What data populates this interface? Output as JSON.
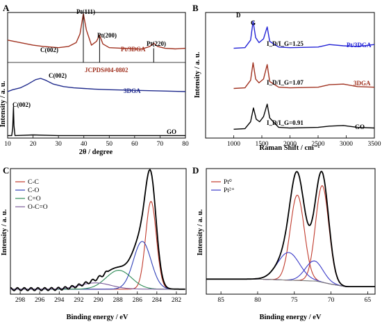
{
  "chart_data": [
    {
      "panel": "A",
      "type": "line",
      "xlabel": "2θ / degree",
      "ylabel": "Intensity / a. u.",
      "xlim": [
        10,
        80
      ],
      "xticks": [
        "10",
        "20",
        "30",
        "40",
        "50",
        "60",
        "70",
        "80"
      ],
      "series": [
        {
          "name": "Pt/3DGA",
          "color": "#a0311f",
          "points": [
            [
              10,
              0.78
            ],
            [
              15,
              0.76
            ],
            [
              20,
              0.74
            ],
            [
              24,
              0.73
            ],
            [
              30,
              0.72
            ],
            [
              34,
              0.73
            ],
            [
              37,
              0.76
            ],
            [
              38.5,
              0.83
            ],
            [
              39.8,
              0.99
            ],
            [
              41,
              0.86
            ],
            [
              43,
              0.74
            ],
            [
              45,
              0.77
            ],
            [
              46.2,
              0.82
            ],
            [
              47.5,
              0.75
            ],
            [
              50,
              0.72
            ],
            [
              55,
              0.715
            ],
            [
              60,
              0.71
            ],
            [
              63,
              0.71
            ],
            [
              66,
              0.73
            ],
            [
              67.5,
              0.755
            ],
            [
              69,
              0.73
            ],
            [
              72,
              0.715
            ],
            [
              76,
              0.71
            ],
            [
              80,
              0.715
            ]
          ]
        },
        {
          "name": "3DGA",
          "color": "#1f2a8c",
          "points": [
            [
              10,
              0.37
            ],
            [
              12,
              0.385
            ],
            [
              15,
              0.4
            ],
            [
              18,
              0.43
            ],
            [
              21,
              0.465
            ],
            [
              23,
              0.475
            ],
            [
              25,
              0.46
            ],
            [
              28,
              0.43
            ],
            [
              32,
              0.41
            ],
            [
              36,
              0.4
            ],
            [
              40,
              0.395
            ],
            [
              44,
              0.39
            ],
            [
              50,
              0.385
            ],
            [
              60,
              0.38
            ],
            [
              70,
              0.375
            ],
            [
              80,
              0.37
            ]
          ]
        },
        {
          "name": "GO",
          "color": "#000000",
          "points": [
            [
              10,
              0.02
            ],
            [
              11.6,
              0.02
            ],
            [
              12.0,
              0.08
            ],
            [
              12.3,
              0.25
            ],
            [
              12.5,
              0.1
            ],
            [
              12.9,
              0.02
            ],
            [
              20,
              0.025
            ],
            [
              30,
              0.02
            ],
            [
              40,
              0.02
            ],
            [
              50,
              0.02
            ],
            [
              60,
              0.02
            ],
            [
              70,
              0.02
            ],
            [
              80,
              0.02
            ]
          ]
        }
      ],
      "reference": {
        "name": "JCPDS#04-0802",
        "peaks": [
          [
            39.8,
            1.0
          ],
          [
            46.2,
            0.55
          ],
          [
            67.5,
            0.3
          ]
        ]
      },
      "annotations": {
        "pt111": "Pt(111)",
        "pt200": "Pt(200)",
        "pt220": "Pt(220)",
        "c002_a": "C(002)",
        "c002_b": "C(002)",
        "c002_c": "C(002)",
        "label_pt3dga": "Pt/3DGA",
        "label_jcpds": "JCPDS#04-0802",
        "label_3dga": "3DGA",
        "label_go": "GO"
      }
    },
    {
      "panel": "B",
      "type": "line",
      "xlabel": "Raman Shift / cm⁻¹",
      "ylabel": "Intensity / a. u.",
      "xlim": [
        500,
        3500
      ],
      "xticks": [
        "1000",
        "1500",
        "2000",
        "2500",
        "3000",
        "3500"
      ],
      "series": [
        {
          "name": "Pt/3DGA",
          "color": "#2323d6",
          "points": [
            [
              1000,
              0.715
            ],
            [
              1200,
              0.72
            ],
            [
              1300,
              0.78
            ],
            [
              1345,
              0.93
            ],
            [
              1390,
              0.8
            ],
            [
              1450,
              0.76
            ],
            [
              1530,
              0.79
            ],
            [
              1595,
              0.885
            ],
            [
              1640,
              0.77
            ],
            [
              1800,
              0.725
            ],
            [
              2000,
              0.72
            ],
            [
              2500,
              0.725
            ],
            [
              2700,
              0.745
            ],
            [
              2950,
              0.735
            ],
            [
              3200,
              0.73
            ],
            [
              3500,
              0.745
            ]
          ]
        },
        {
          "name": "3DGA",
          "color": "#a0311f",
          "points": [
            [
              1000,
              0.395
            ],
            [
              1200,
              0.4
            ],
            [
              1300,
              0.46
            ],
            [
              1345,
              0.6
            ],
            [
              1390,
              0.47
            ],
            [
              1450,
              0.44
            ],
            [
              1530,
              0.47
            ],
            [
              1595,
              0.585
            ],
            [
              1640,
              0.45
            ],
            [
              1800,
              0.405
            ],
            [
              2000,
              0.4
            ],
            [
              2500,
              0.405
            ],
            [
              2700,
              0.425
            ],
            [
              2950,
              0.43
            ],
            [
              3200,
              0.41
            ],
            [
              3500,
              0.405
            ]
          ]
        },
        {
          "name": "GO",
          "color": "#000000",
          "points": [
            [
              1000,
              0.07
            ],
            [
              1200,
              0.075
            ],
            [
              1300,
              0.13
            ],
            [
              1350,
              0.24
            ],
            [
              1400,
              0.15
            ],
            [
              1460,
              0.13
            ],
            [
              1530,
              0.17
            ],
            [
              1595,
              0.27
            ],
            [
              1640,
              0.16
            ],
            [
              1800,
              0.085
            ],
            [
              2000,
              0.08
            ],
            [
              2500,
              0.085
            ],
            [
              2700,
              0.095
            ],
            [
              2950,
              0.1
            ],
            [
              3200,
              0.085
            ],
            [
              3500,
              0.08
            ]
          ]
        }
      ],
      "annotations": {
        "d_band": "D",
        "g_band": "G",
        "ratio_pt3dga": "I_D/I_G=1.25",
        "ratio_3dga": "I_D/I_G=1.07",
        "ratio_go": "I_D/I_G=0.91",
        "label_pt3dga": "Pt/3DGA",
        "label_3dga": "3DGA",
        "label_go": "GO"
      }
    },
    {
      "panel": "C",
      "type": "line",
      "xlabel": "Binding energy / eV",
      "ylabel": "Intensity / a. u.",
      "xlim": [
        299,
        281
      ],
      "xticks": [
        "298",
        "296",
        "294",
        "292",
        "290",
        "288",
        "286",
        "284",
        "282"
      ],
      "legend": [
        "C-C",
        "C-O",
        "C=O",
        "O-C=O"
      ],
      "series": [
        {
          "name": "C-C",
          "color": "#c0392b",
          "center": 284.6,
          "height": 0.7,
          "width": 0.55
        },
        {
          "name": "C-O",
          "color": "#2f3fb8",
          "center": 285.5,
          "height": 0.38,
          "width": 0.9
        },
        {
          "name": "C=O",
          "color": "#2e8b57",
          "center": 287.9,
          "height": 0.15,
          "width": 1.3
        },
        {
          "name": "O-C=O",
          "color": "#7a5a9a",
          "center": 290.3,
          "height": 0.05,
          "width": 1.6
        },
        {
          "name": "",
          "color": "#000000",
          "role": "envelope"
        }
      ]
    },
    {
      "panel": "D",
      "type": "line",
      "xlabel": "Binding energy / eV",
      "ylabel": "Intensity / a. u.",
      "xlim": [
        87,
        64
      ],
      "xticks": [
        "85",
        "80",
        "75",
        "70",
        "65"
      ],
      "legend": [
        "Pt⁰",
        "Pt²⁺"
      ],
      "series": [
        {
          "name": "Pt⁰",
          "color": "#c0392b",
          "peaks": [
            [
              71.2,
              0.77,
              0.9
            ],
            [
              74.6,
              0.68,
              0.95
            ]
          ]
        },
        {
          "name": "Pt²⁺",
          "color": "#3a3ac8",
          "peaks": [
            [
              72.3,
              0.16,
              1.2
            ],
            [
              75.8,
              0.22,
              1.5
            ]
          ]
        },
        {
          "name": "",
          "color": "#000000",
          "role": "envelope"
        },
        {
          "name": "",
          "color": "#777777",
          "role": "background"
        }
      ]
    }
  ],
  "panel_letters": {
    "a": "A",
    "b": "B",
    "c": "C",
    "d": "D"
  },
  "legend_c": {
    "cc": "C-C",
    "co": "C-O",
    "c_o": "C=O",
    "occo": "O-C=O"
  },
  "legend_d": {
    "pt0": "Pt⁰",
    "pt2": "Pt²⁺"
  }
}
